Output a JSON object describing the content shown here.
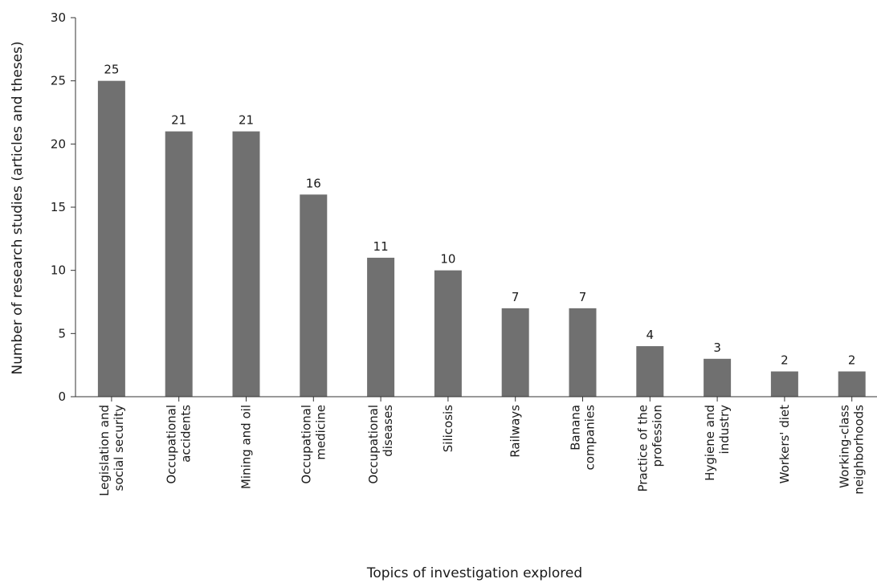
{
  "chart_data": {
    "type": "bar",
    "title": "",
    "xlabel": "Topics of investigation explored",
    "ylabel": "Number of research studies (articles and theses)",
    "ylim": [
      0,
      30
    ],
    "yticks": [
      0,
      5,
      10,
      15,
      20,
      25,
      30
    ],
    "grid": false,
    "bar_color": "#707070",
    "categories": [
      [
        "Legislation and",
        "social security"
      ],
      [
        "Occupational",
        "accidents"
      ],
      [
        "Mining and oil"
      ],
      [
        "Occupational",
        "medicine"
      ],
      [
        "Occupational",
        "diseases"
      ],
      [
        "Silicosis"
      ],
      [
        "Railways"
      ],
      [
        "Banana",
        "companies"
      ],
      [
        "Practice of the",
        "profession"
      ],
      [
        "Hygiene and",
        "industry"
      ],
      [
        "Workers' diet"
      ],
      [
        "Working-class",
        "neighborhoods"
      ]
    ],
    "values": [
      25,
      21,
      21,
      16,
      11,
      10,
      7,
      7,
      4,
      3,
      2,
      2
    ]
  }
}
